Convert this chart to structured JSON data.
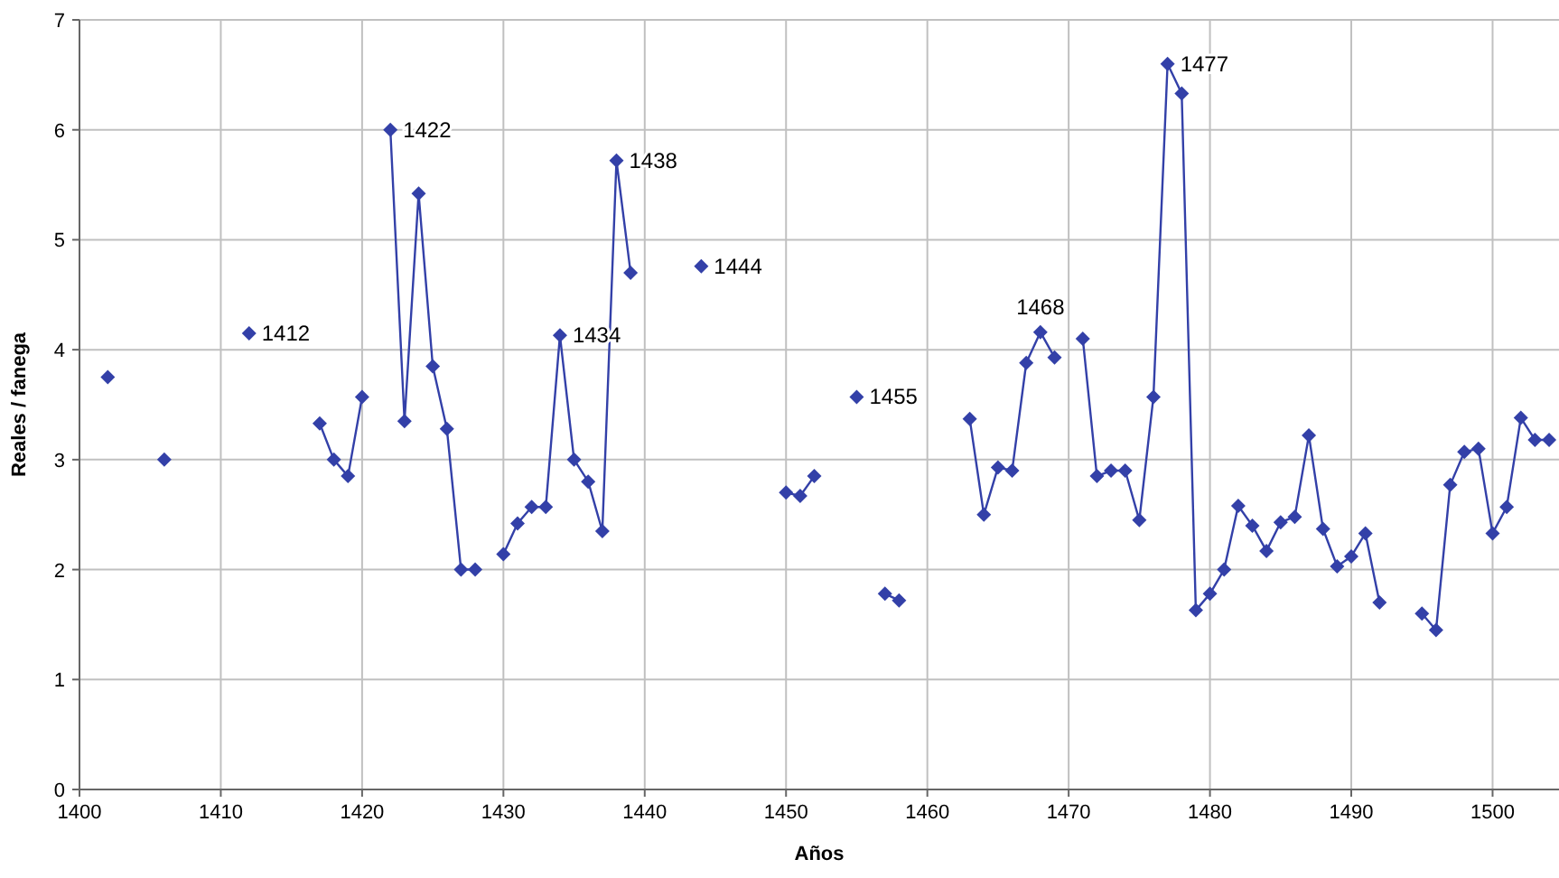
{
  "chart_data": {
    "type": "line",
    "xlabel": "Años",
    "ylabel": "Reales / fanega",
    "x": [
      1402,
      1403,
      1406,
      1407,
      1412,
      1413,
      1417,
      1418,
      1419,
      1420,
      1421,
      1422,
      1423,
      1424,
      1425,
      1426,
      1427,
      1428,
      1429,
      1430,
      1431,
      1432,
      1433,
      1434,
      1435,
      1436,
      1437,
      1438,
      1439,
      1440,
      1444,
      1445,
      1450,
      1451,
      1452,
      1453,
      1455,
      1456,
      1457,
      1458,
      1459,
      1463,
      1464,
      1465,
      1466,
      1467,
      1468,
      1469,
      1470,
      1471,
      1472,
      1473,
      1474,
      1475,
      1476,
      1477,
      1478,
      1479,
      1480,
      1481,
      1482,
      1483,
      1484,
      1485,
      1486,
      1487,
      1488,
      1489,
      1490,
      1491,
      1492,
      1493,
      1495,
      1496,
      1497,
      1498,
      1499,
      1500,
      1501,
      1502,
      1503,
      1504
    ],
    "series": [
      {
        "color": "#3340a8",
        "values": [
          3.75,
          null,
          3.0,
          null,
          4.15,
          null,
          3.33,
          3.0,
          2.85,
          3.57,
          null,
          6.0,
          3.35,
          5.42,
          3.85,
          3.28,
          2.0,
          2.0,
          null,
          2.14,
          2.42,
          2.57,
          2.57,
          4.13,
          3.0,
          2.8,
          2.35,
          5.72,
          4.7,
          null,
          4.76,
          null,
          2.7,
          2.67,
          2.85,
          null,
          3.57,
          null,
          1.78,
          1.72,
          null,
          3.37,
          2.5,
          2.93,
          2.9,
          3.88,
          4.16,
          3.93,
          null,
          4.1,
          2.85,
          2.9,
          2.9,
          2.45,
          3.57,
          6.6,
          6.33,
          1.63,
          1.78,
          2.0,
          2.58,
          2.4,
          2.17,
          2.43,
          2.48,
          3.22,
          2.37,
          2.03,
          2.12,
          2.33,
          1.7,
          null,
          1.6,
          1.45,
          2.77,
          3.07,
          3.1,
          2.33,
          2.57,
          3.38,
          3.18,
          3.18
        ]
      }
    ],
    "annotations": [
      {
        "text": "1412",
        "x": 1412,
        "y": 4.15
      },
      {
        "text": "1422",
        "x": 1422,
        "y": 6.0
      },
      {
        "text": "1434",
        "x": 1434,
        "y": 4.13
      },
      {
        "text": "1438",
        "x": 1438,
        "y": 5.72
      },
      {
        "text": "1444",
        "x": 1444,
        "y": 4.76
      },
      {
        "text": "1455",
        "x": 1455,
        "y": 3.57
      },
      {
        "text": "1468",
        "x": 1468,
        "y": 4.16
      },
      {
        "text": "1477",
        "x": 1477,
        "y": 6.6
      }
    ],
    "xlim": [
      1400,
      1504.7
    ],
    "xticks": [
      1400,
      1410,
      1420,
      1430,
      1440,
      1450,
      1460,
      1470,
      1480,
      1490,
      1500
    ],
    "ylim": [
      0,
      7
    ],
    "yticks": [
      0,
      1,
      2,
      3,
      4,
      5,
      6,
      7
    ],
    "grid": true,
    "marker": "diamond",
    "line_style": "solid"
  }
}
